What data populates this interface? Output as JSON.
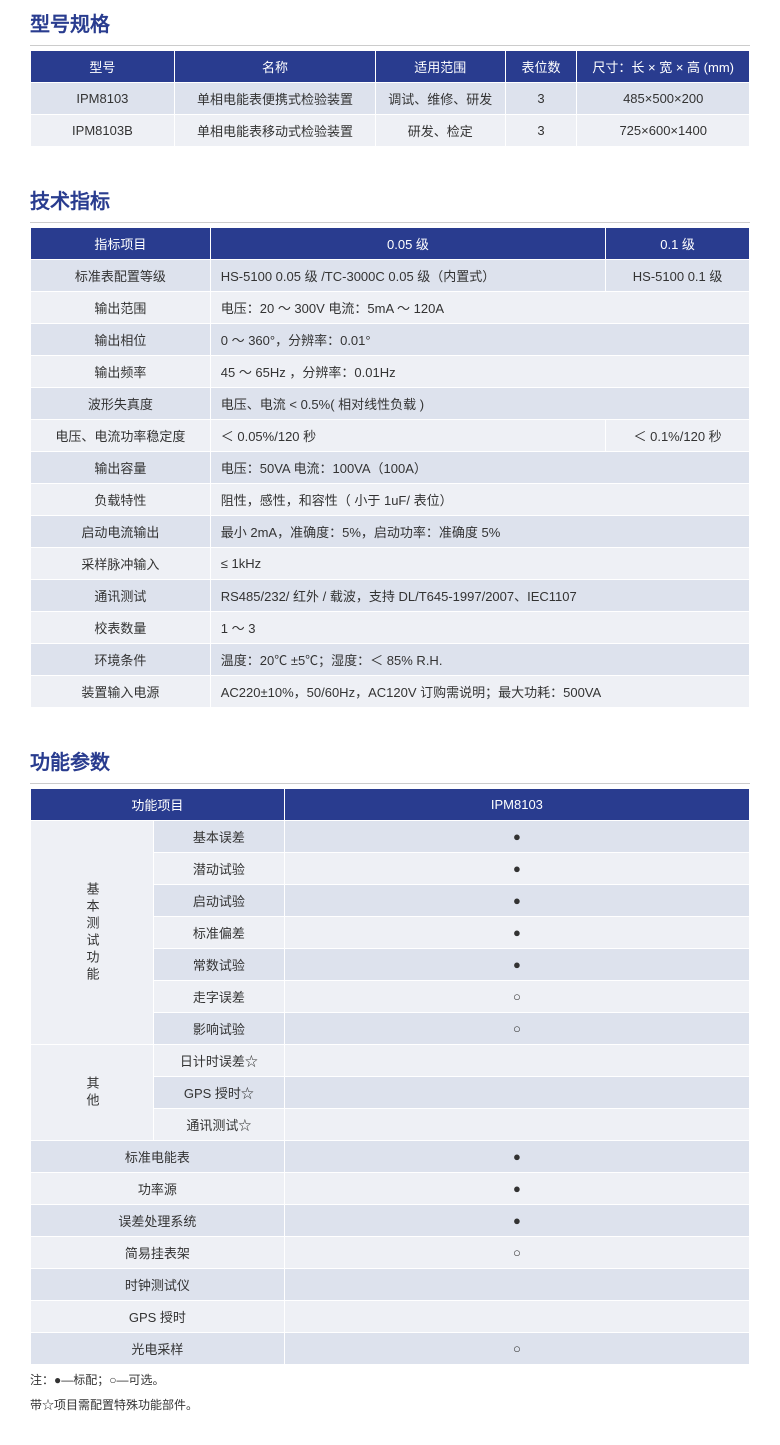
{
  "colors": {
    "header_bg": "#293c8f",
    "header_text": "#ffffff",
    "row_odd": "#dde2ed",
    "row_even": "#eef0f5",
    "title_color": "#293c8f"
  },
  "sections": {
    "models": {
      "title": "型号规格",
      "headers": [
        "型号",
        "名称",
        "适用范围",
        "表位数",
        "尺寸：长 × 宽 × 高 (mm)"
      ],
      "rows": [
        [
          "IPM8103",
          "单相电能表便携式检验装置",
          "调试、维修、研发",
          "3",
          "485×500×200"
        ],
        [
          "IPM8103B",
          "单相电能表移动式检验装置",
          "研发、检定",
          "3",
          "725×600×1400"
        ]
      ]
    },
    "specs": {
      "title": "技术指标",
      "headers": [
        "指标项目",
        "0.05 级",
        "0.1 级"
      ],
      "rows": [
        {
          "label": "标准表配置等级",
          "cells": [
            "HS-5100 0.05 级 /TC-3000C 0.05 级（内置式）",
            "HS-5100 0.1 级"
          ]
        },
        {
          "label": "输出范围",
          "cells": [
            "电压：20 ～ 300V   电流：5mA ～ 120A"
          ]
        },
        {
          "label": "输出相位",
          "cells": [
            "0 ～ 360°，分辨率：0.01°"
          ]
        },
        {
          "label": "输出频率",
          "cells": [
            "45 ～ 65Hz ，分辨率：0.01Hz"
          ]
        },
        {
          "label": "波形失真度",
          "cells": [
            "电压、电流 < 0.5%( 相对线性负载 )"
          ]
        },
        {
          "label": "电压、电流功率稳定度",
          "cells": [
            " ＜ 0.05%/120 秒",
            "＜ 0.1%/120 秒"
          ]
        },
        {
          "label": "输出容量",
          "cells": [
            "电压：50VA   电流：100VA（100A）"
          ]
        },
        {
          "label": "负载特性",
          "cells": [
            "阻性，感性，和容性（ 小于 1uF/ 表位）"
          ]
        },
        {
          "label": "启动电流输出",
          "cells": [
            "最小 2mA，准确度：5%，启动功率：准确度 5%"
          ]
        },
        {
          "label": "采样脉冲输入",
          "cells": [
            "≤ 1kHz"
          ]
        },
        {
          "label": "通讯测试",
          "cells": [
            "RS485/232/ 红外 / 载波，支持 DL/T645-1997/2007、IEC1107"
          ]
        },
        {
          "label": "校表数量",
          "cells": [
            "1 ～ 3"
          ]
        },
        {
          "label": "环境条件",
          "cells": [
            "温度：20℃ ±5℃；湿度：＜ 85% R.H."
          ]
        },
        {
          "label": "装置输入电源",
          "cells": [
            "AC220±10%，50/60Hz，AC120V 订购需说明；最大功耗：500VA"
          ]
        }
      ]
    },
    "functions": {
      "title": "功能参数",
      "headers": [
        "功能项目",
        "IPM8103"
      ],
      "group1_label": "基本测试功能",
      "group1": [
        {
          "label": "基本误差",
          "mark": "●"
        },
        {
          "label": "潜动试验",
          "mark": "●"
        },
        {
          "label": "启动试验",
          "mark": "●"
        },
        {
          "label": "标准偏差",
          "mark": "●"
        },
        {
          "label": "常数试验",
          "mark": "●"
        },
        {
          "label": "走字误差",
          "mark": "○"
        },
        {
          "label": "影响试验",
          "mark": "○"
        }
      ],
      "group2_label": "其他",
      "group2": [
        {
          "label": "日计时误差☆",
          "mark": ""
        },
        {
          "label": "GPS 授时☆",
          "mark": ""
        },
        {
          "label": "通讯测试☆",
          "mark": ""
        }
      ],
      "rest": [
        {
          "label": "标准电能表",
          "mark": "●"
        },
        {
          "label": "功率源",
          "mark": "●"
        },
        {
          "label": "误差处理系统",
          "mark": "●"
        },
        {
          "label": "简易挂表架",
          "mark": "○"
        },
        {
          "label": "时钟测试仪",
          "mark": ""
        },
        {
          "label": "GPS 授时",
          "mark": ""
        },
        {
          "label": "光电采样",
          "mark": "○"
        }
      ],
      "note1": "注：●—标配；○—可选。",
      "note2": "带☆项目需配置特殊功能部件。"
    }
  }
}
